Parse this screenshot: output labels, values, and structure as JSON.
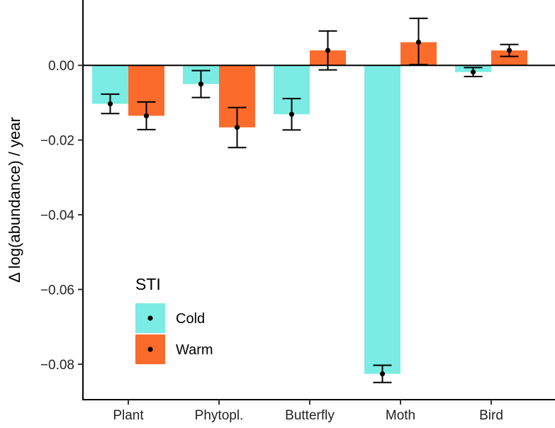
{
  "chart_data": {
    "type": "bar",
    "title": "",
    "xlabel": "",
    "ylabel": "Δ log(abundance) / year",
    "ylim": [
      -0.0895,
      0.0175
    ],
    "yticks": [
      0.0,
      -0.02,
      -0.04,
      -0.06,
      -0.08
    ],
    "ytick_labels": [
      "0.00",
      "−0.02",
      "−0.04",
      "−0.06",
      "−0.08"
    ],
    "categories": [
      "Plant",
      "Phytopl.",
      "Butterfly",
      "Moth",
      "Bird"
    ],
    "series": [
      {
        "name": "Cold",
        "color": "#7aece3",
        "values": [
          -0.0103,
          -0.005,
          -0.0131,
          -0.0826,
          -0.0018
        ],
        "err_low": [
          -0.0129,
          -0.0086,
          -0.0173,
          -0.0849,
          -0.003
        ],
        "err_high": [
          -0.0077,
          -0.0014,
          -0.0089,
          -0.0803,
          -0.0006
        ]
      },
      {
        "name": "Warm",
        "color": "#fb6b2b",
        "values": [
          -0.0135,
          -0.0166,
          0.004,
          0.0062,
          0.004
        ],
        "err_low": [
          -0.0172,
          -0.022,
          -0.0012,
          0.0002,
          0.0024
        ],
        "err_high": [
          -0.0098,
          -0.0113,
          0.0092,
          0.0126,
          0.0056
        ]
      }
    ],
    "legend": {
      "title": "STI",
      "position": "bottom-left",
      "entries": [
        "Cold",
        "Warm"
      ]
    },
    "reference_line": 0
  }
}
